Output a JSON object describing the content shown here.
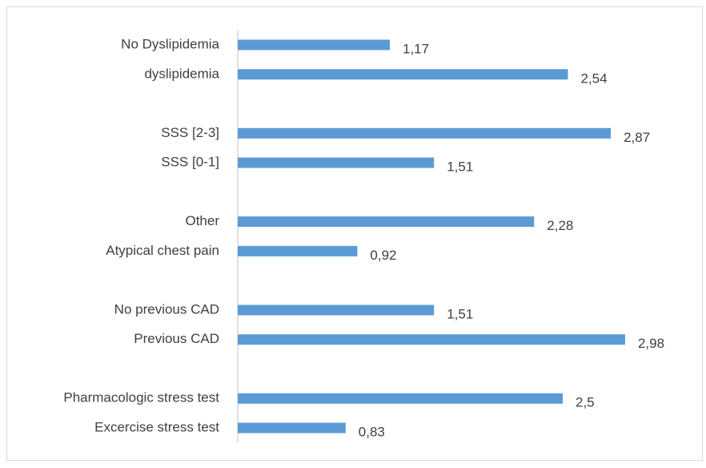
{
  "chart_data": {
    "type": "hbar",
    "categories": [
      "No Dyslipidemia",
      "dyslipidemia",
      null,
      "SSS [2-3]",
      "SSS [0-1]",
      null,
      "Other",
      "Atypical chest pain",
      null,
      "No previous CAD",
      "Previous CAD",
      null,
      "Pharmacologic stress test",
      "Excercise stress test"
    ],
    "values": [
      1.17,
      2.54,
      null,
      2.87,
      1.51,
      null,
      2.28,
      0.92,
      null,
      1.51,
      2.98,
      null,
      2.5,
      0.83
    ],
    "value_labels": [
      "1,17",
      "2,54",
      null,
      "2,87",
      "1,51",
      null,
      "2,28",
      "0,92",
      null,
      "1,51",
      "2,98",
      null,
      "2,5",
      "0,83"
    ],
    "color": "#5b9bd5"
  }
}
